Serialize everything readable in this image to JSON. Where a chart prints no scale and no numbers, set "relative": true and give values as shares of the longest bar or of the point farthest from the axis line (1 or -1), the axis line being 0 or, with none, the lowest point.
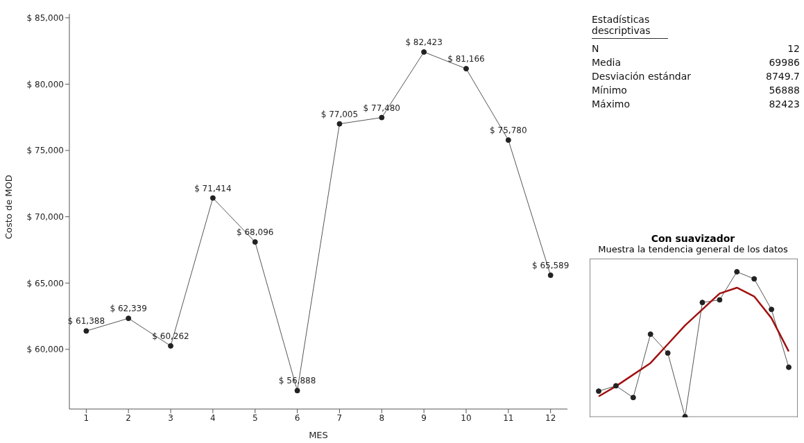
{
  "chart_data": [
    {
      "type": "line",
      "xlabel": "MES",
      "ylabel": "Costo de MOD",
      "x": [
        1,
        2,
        3,
        4,
        5,
        6,
        7,
        8,
        9,
        10,
        11,
        12
      ],
      "series": [
        {
          "color": "#555555",
          "values": [
            61388,
            62339,
            60262,
            71414,
            68096,
            56888,
            77005,
            77480,
            82423,
            81166,
            75780,
            65589
          ],
          "value_labels": [
            "$ 61,388",
            "$ 62,339",
            "$ 60,262",
            "$ 71,414",
            "$ 68,096",
            "$ 56,888",
            "$ 77,005",
            "$ 77,480",
            "$ 82,423",
            "$ 81,166",
            "$ 75,780",
            "$ 65,589"
          ]
        }
      ],
      "xlim": [
        0.6,
        12.4
      ],
      "xticks": [
        1,
        2,
        3,
        4,
        5,
        6,
        7,
        8,
        9,
        10,
        11,
        12
      ],
      "ylim": [
        55500,
        85300
      ],
      "yticks": [
        {
          "value": 60000,
          "label": "$ 60,000"
        },
        {
          "value": 65000,
          "label": "$ 65,000"
        },
        {
          "value": 70000,
          "label": "$ 70,000"
        },
        {
          "value": 75000,
          "label": "$ 75,000"
        },
        {
          "value": 80000,
          "label": "$ 80,000"
        },
        {
          "value": 85000,
          "label": "$ 85,000"
        }
      ],
      "marker": "circle"
    },
    {
      "type": "other",
      "title": "Estadísticas descriptivas",
      "categories": [
        "N",
        "Media",
        "Desviación estándar",
        "Mínimo",
        "Máximo"
      ],
      "values": [
        12,
        69986,
        8749.7,
        56888,
        82423
      ],
      "data_labels": true
    },
    {
      "type": "line",
      "title": "Con suavizador",
      "subtitle": "Muestra la tendencia general de los datos",
      "relative": true,
      "categories": [
        null,
        null,
        null,
        null,
        null,
        null,
        null,
        null,
        null,
        null,
        null,
        null
      ],
      "series": [
        {
          "color": "#555555",
          "marker": "circle",
          "values": [
            0.176,
            0.213,
            0.132,
            0.569,
            0.439,
            0,
            0.788,
            0.806,
            1,
            0.951,
            0.74,
            0.341
          ]
        },
        {
          "color": "#a01010",
          "marker": "none",
          "values": [
            0.14,
            0.21,
            0.29,
            0.37,
            0.5,
            0.63,
            0.74,
            0.85,
            0.89,
            0.83,
            0.68,
            0.45
          ]
        }
      ]
    }
  ]
}
